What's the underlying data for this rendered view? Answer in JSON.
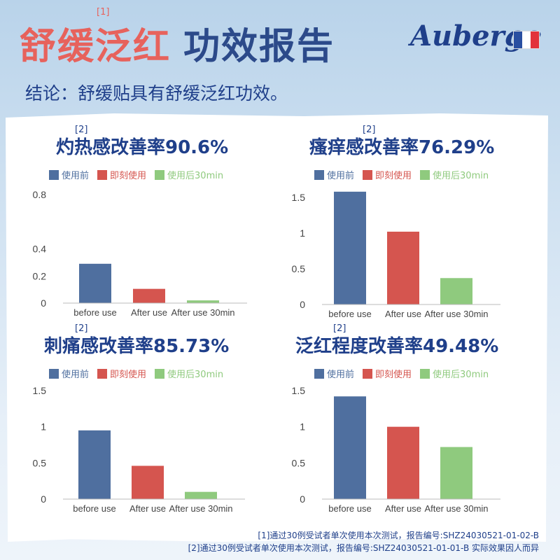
{
  "header": {
    "title_red": "舒缓泛红",
    "title_blue": "功效报告",
    "title_note": "[1]",
    "brand": "Auberge",
    "flag_colors": [
      "#2a4fa1",
      "#ffffff",
      "#e2333b"
    ],
    "conclusion": "结论：舒缓贴具有舒缓泛红功效。"
  },
  "legend": [
    {
      "label": "使用前",
      "color": "#4f6f9f"
    },
    {
      "label": "即刻使用",
      "color": "#d5554f"
    },
    {
      "label": "使用后30min",
      "color": "#8fca7e"
    }
  ],
  "chart_data": [
    {
      "type": "bar",
      "title": "灼热感改善率90.6%",
      "note": "[2]",
      "categories": [
        "before use",
        "After use",
        "After use 30min"
      ],
      "values": [
        0.29,
        0.105,
        0.02
      ],
      "ylim": [
        0,
        0.8
      ],
      "yticks": [
        "0",
        "0.2",
        "0.4",
        "0.8"
      ],
      "ytick_values": [
        0,
        0.2,
        0.4,
        0.8
      ],
      "grid": false
    },
    {
      "type": "bar",
      "title": "瘙痒感改善率76.29%",
      "note": "[2]",
      "categories": [
        "before use",
        "After use",
        "After use 30min"
      ],
      "values": [
        1.58,
        1.02,
        0.37
      ],
      "ylim": [
        0,
        1.5
      ],
      "yticks": [
        "0",
        "0.5",
        "1",
        "1.5"
      ],
      "ytick_values": [
        0,
        0.5,
        1,
        1.5
      ],
      "grid": false
    },
    {
      "type": "bar",
      "title": "刺痛感改善率85.73%",
      "note": "[2]",
      "categories": [
        "before use",
        "After use",
        "After use 30min"
      ],
      "values": [
        0.95,
        0.46,
        0.1
      ],
      "ylim": [
        0,
        1.5
      ],
      "yticks": [
        "0",
        "0.5",
        "1",
        "1.5"
      ],
      "ytick_values": [
        0,
        0.5,
        1,
        1.5
      ],
      "grid": false
    },
    {
      "type": "bar",
      "title": "泛红程度改善率49.48%",
      "note": "[2]",
      "categories": [
        "before use",
        "After use",
        "After use 30min"
      ],
      "values": [
        1.42,
        1.0,
        0.72
      ],
      "ylim": [
        0,
        1.5
      ],
      "yticks": [
        "0",
        "0.5",
        "1",
        "1.5"
      ],
      "ytick_values": [
        0,
        0.5,
        1,
        1.5
      ],
      "grid": false
    }
  ],
  "footer": {
    "line1": "[1]通过30例受试者单次使用本次测试，报告编号:SHZ24030521-01-02-B",
    "line2": "[2]通过30例受试者单次使用本次测试，报告编号:SHZ24030521-01-01-B 实际效果因人而异"
  }
}
